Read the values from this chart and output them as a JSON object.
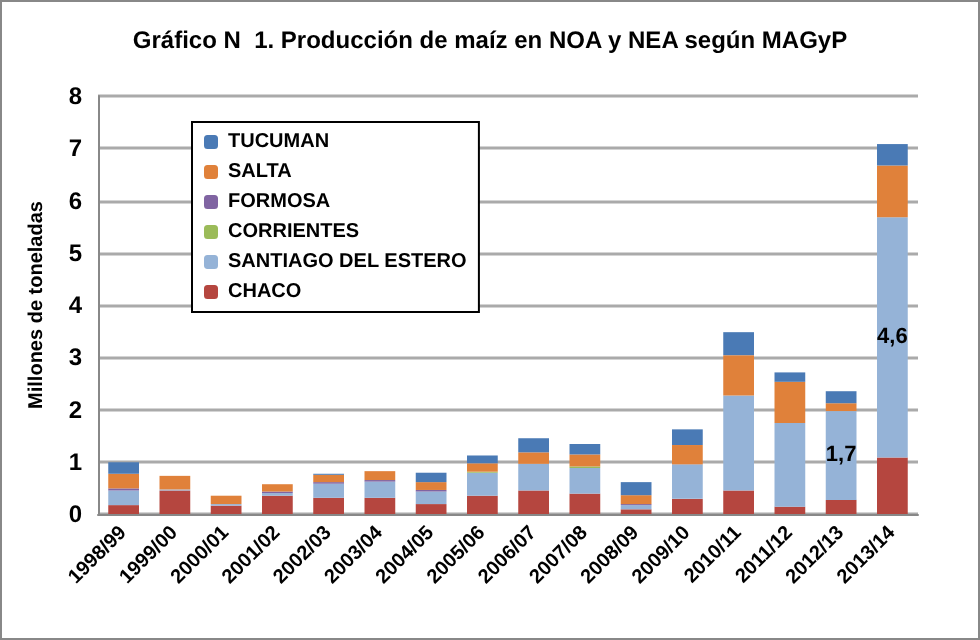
{
  "chart_data": {
    "type": "bar",
    "stacked": true,
    "title": "Gráfico N  1. Producción de maíz en NOA y NEA según MAGyP",
    "ylabel": "Millones de toneladas",
    "categories": [
      "1998/99",
      "1999/00",
      "2000/01",
      "2001/02",
      "2002/03",
      "2003/04",
      "2004/05",
      "2005/06",
      "2006/07",
      "2007/08",
      "2008/09",
      "2009/10",
      "2010/11",
      "2011/12",
      "2012/13",
      "2013/14"
    ],
    "series": [
      {
        "name": "CHACO",
        "color": "#b5463f",
        "values": [
          0.17,
          0.45,
          0.16,
          0.35,
          0.31,
          0.31,
          0.19,
          0.35,
          0.45,
          0.39,
          0.09,
          0.29,
          0.45,
          0.14,
          0.27,
          1.08
        ]
      },
      {
        "name": "SANTIAGO DEL ESTERO",
        "color": "#95b3d7",
        "values": [
          0.28,
          0.02,
          0.03,
          0.05,
          0.27,
          0.31,
          0.24,
          0.44,
          0.51,
          0.49,
          0.08,
          0.66,
          1.82,
          1.6,
          1.7,
          4.6
        ],
        "value_labels": [
          null,
          null,
          null,
          null,
          null,
          null,
          null,
          null,
          null,
          null,
          null,
          null,
          null,
          null,
          "1,7",
          "4,6"
        ]
      },
      {
        "name": "CORRIENTES",
        "color": "#9bbb59",
        "values": [
          null,
          0,
          0,
          0,
          0,
          0,
          0,
          0.02,
          0,
          0.03,
          0,
          0,
          0,
          0,
          0,
          0
        ]
      },
      {
        "name": "FORMOSA",
        "color": "#8064a2",
        "values": [
          0.04,
          0,
          0,
          0.03,
          0.03,
          0.03,
          0.03,
          0,
          0,
          0,
          0.02,
          0,
          0,
          0,
          0,
          0
        ]
      },
      {
        "name": "SALTA",
        "color": "#e0813a",
        "values": [
          0.28,
          0.26,
          0.16,
          0.14,
          0.14,
          0.17,
          0.15,
          0.16,
          0.22,
          0.23,
          0.17,
          0.37,
          0.77,
          0.79,
          0.15,
          0.99
        ]
      },
      {
        "name": "TUCUMAN",
        "color": "#4a7ab5",
        "values": [
          0.22,
          0,
          0,
          0,
          0.02,
          0,
          0.18,
          0.15,
          0.27,
          0.2,
          0.25,
          0.3,
          0.44,
          0.18,
          0.23,
          0.41
        ]
      }
    ],
    "ylim": [
      0,
      8
    ],
    "yticks": [
      0,
      1,
      2,
      3,
      4,
      5,
      6,
      7,
      8
    ],
    "grid": "y",
    "legend": "top left"
  }
}
